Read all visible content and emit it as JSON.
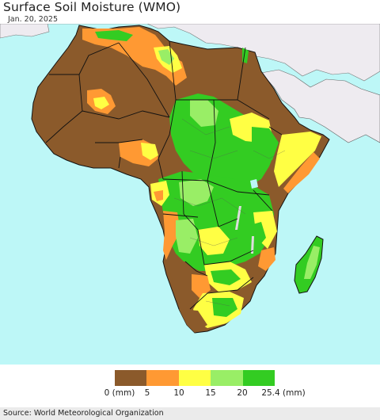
{
  "header": {
    "title": "Surface Soil Moisture (WMO)",
    "date": "Jan. 20, 2025"
  },
  "legend": {
    "colors": [
      "#8b5a2b",
      "#ff9933",
      "#ffff44",
      "#99ee66",
      "#33cc22"
    ],
    "labels": [
      "0 (mm)",
      "5",
      "10",
      "15",
      "20",
      "25.4 (mm)"
    ]
  },
  "map": {
    "ocean_color": "#bdf7f7",
    "nodata_land_color": "#eeebf0",
    "border_color": "#111111"
  },
  "footer": {
    "source": "Source: World Meteorological Organization"
  }
}
